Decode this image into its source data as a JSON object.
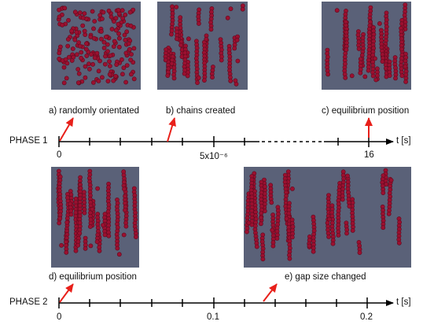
{
  "panels": [
    {
      "id": "a",
      "caption": "a) randomly orientated"
    },
    {
      "id": "b",
      "caption": "b) chains created"
    },
    {
      "id": "c",
      "caption": "c) equilibrium position"
    },
    {
      "id": "d",
      "caption": "d) equilibrium position"
    },
    {
      "id": "e",
      "caption": "e) gap size changed"
    }
  ],
  "timeline1": {
    "label": "PHASE 1",
    "unit": "t [s]",
    "ticks": [
      "0",
      "5x10⁻⁶",
      "16"
    ]
  },
  "timeline2": {
    "label": "PHASE 2",
    "unit": "t [s]",
    "ticks": [
      "0",
      "0.1",
      "0.2"
    ]
  },
  "colors": {
    "particle": "#9b1030",
    "sim_bg": "#5a6178",
    "arrow": "#e8201a",
    "axis": "#000000"
  }
}
